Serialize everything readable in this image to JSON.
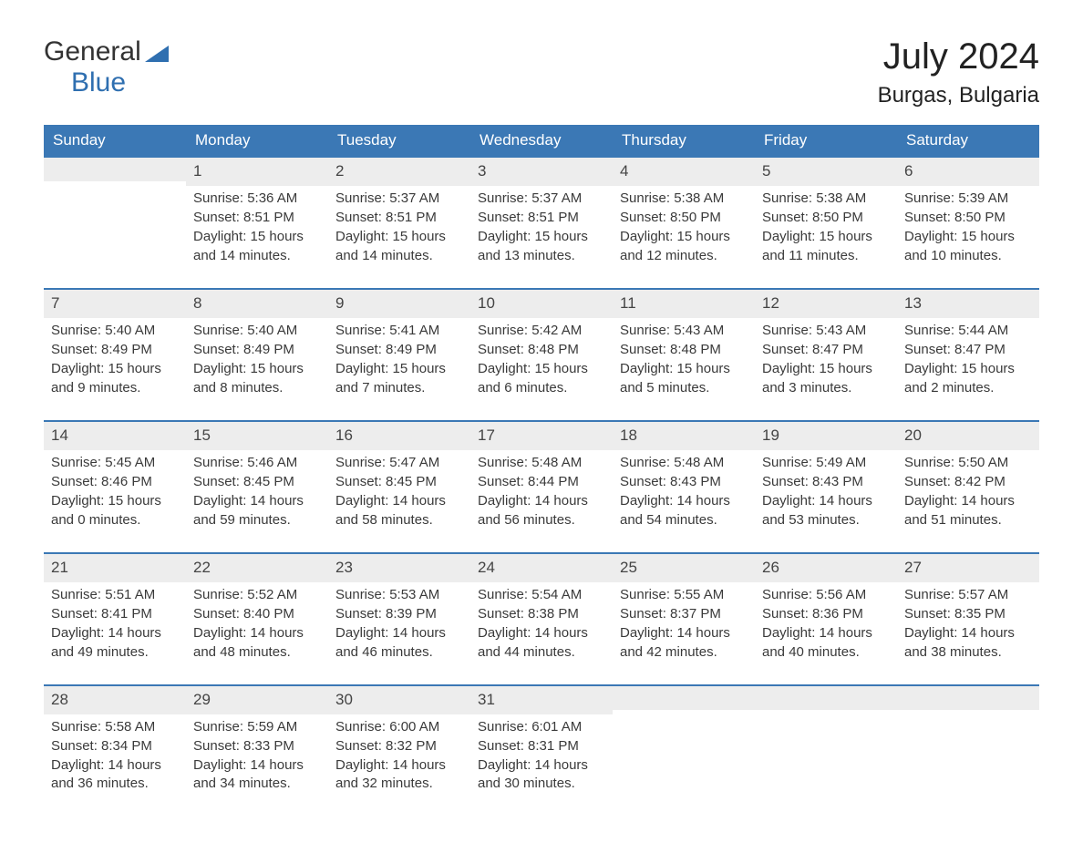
{
  "logo": {
    "word1": "General",
    "word2": "Blue"
  },
  "header": {
    "month_title": "July 2024",
    "location": "Burgas, Bulgaria"
  },
  "colors": {
    "header_bg": "#3b78b5",
    "header_text": "#ffffff",
    "daynum_bg": "#ededed",
    "border": "#3b78b5",
    "logo_blue": "#2f6fb0",
    "body_text": "#3a3a3a"
  },
  "weekdays": [
    "Sunday",
    "Monday",
    "Tuesday",
    "Wednesday",
    "Thursday",
    "Friday",
    "Saturday"
  ],
  "weeks": [
    [
      {
        "n": "",
        "sunrise": "",
        "sunset": "",
        "daylight": ""
      },
      {
        "n": "1",
        "sunrise": "Sunrise: 5:36 AM",
        "sunset": "Sunset: 8:51 PM",
        "daylight": "Daylight: 15 hours and 14 minutes."
      },
      {
        "n": "2",
        "sunrise": "Sunrise: 5:37 AM",
        "sunset": "Sunset: 8:51 PM",
        "daylight": "Daylight: 15 hours and 14 minutes."
      },
      {
        "n": "3",
        "sunrise": "Sunrise: 5:37 AM",
        "sunset": "Sunset: 8:51 PM",
        "daylight": "Daylight: 15 hours and 13 minutes."
      },
      {
        "n": "4",
        "sunrise": "Sunrise: 5:38 AM",
        "sunset": "Sunset: 8:50 PM",
        "daylight": "Daylight: 15 hours and 12 minutes."
      },
      {
        "n": "5",
        "sunrise": "Sunrise: 5:38 AM",
        "sunset": "Sunset: 8:50 PM",
        "daylight": "Daylight: 15 hours and 11 minutes."
      },
      {
        "n": "6",
        "sunrise": "Sunrise: 5:39 AM",
        "sunset": "Sunset: 8:50 PM",
        "daylight": "Daylight: 15 hours and 10 minutes."
      }
    ],
    [
      {
        "n": "7",
        "sunrise": "Sunrise: 5:40 AM",
        "sunset": "Sunset: 8:49 PM",
        "daylight": "Daylight: 15 hours and 9 minutes."
      },
      {
        "n": "8",
        "sunrise": "Sunrise: 5:40 AM",
        "sunset": "Sunset: 8:49 PM",
        "daylight": "Daylight: 15 hours and 8 minutes."
      },
      {
        "n": "9",
        "sunrise": "Sunrise: 5:41 AM",
        "sunset": "Sunset: 8:49 PM",
        "daylight": "Daylight: 15 hours and 7 minutes."
      },
      {
        "n": "10",
        "sunrise": "Sunrise: 5:42 AM",
        "sunset": "Sunset: 8:48 PM",
        "daylight": "Daylight: 15 hours and 6 minutes."
      },
      {
        "n": "11",
        "sunrise": "Sunrise: 5:43 AM",
        "sunset": "Sunset: 8:48 PM",
        "daylight": "Daylight: 15 hours and 5 minutes."
      },
      {
        "n": "12",
        "sunrise": "Sunrise: 5:43 AM",
        "sunset": "Sunset: 8:47 PM",
        "daylight": "Daylight: 15 hours and 3 minutes."
      },
      {
        "n": "13",
        "sunrise": "Sunrise: 5:44 AM",
        "sunset": "Sunset: 8:47 PM",
        "daylight": "Daylight: 15 hours and 2 minutes."
      }
    ],
    [
      {
        "n": "14",
        "sunrise": "Sunrise: 5:45 AM",
        "sunset": "Sunset: 8:46 PM",
        "daylight": "Daylight: 15 hours and 0 minutes."
      },
      {
        "n": "15",
        "sunrise": "Sunrise: 5:46 AM",
        "sunset": "Sunset: 8:45 PM",
        "daylight": "Daylight: 14 hours and 59 minutes."
      },
      {
        "n": "16",
        "sunrise": "Sunrise: 5:47 AM",
        "sunset": "Sunset: 8:45 PM",
        "daylight": "Daylight: 14 hours and 58 minutes."
      },
      {
        "n": "17",
        "sunrise": "Sunrise: 5:48 AM",
        "sunset": "Sunset: 8:44 PM",
        "daylight": "Daylight: 14 hours and 56 minutes."
      },
      {
        "n": "18",
        "sunrise": "Sunrise: 5:48 AM",
        "sunset": "Sunset: 8:43 PM",
        "daylight": "Daylight: 14 hours and 54 minutes."
      },
      {
        "n": "19",
        "sunrise": "Sunrise: 5:49 AM",
        "sunset": "Sunset: 8:43 PM",
        "daylight": "Daylight: 14 hours and 53 minutes."
      },
      {
        "n": "20",
        "sunrise": "Sunrise: 5:50 AM",
        "sunset": "Sunset: 8:42 PM",
        "daylight": "Daylight: 14 hours and 51 minutes."
      }
    ],
    [
      {
        "n": "21",
        "sunrise": "Sunrise: 5:51 AM",
        "sunset": "Sunset: 8:41 PM",
        "daylight": "Daylight: 14 hours and 49 minutes."
      },
      {
        "n": "22",
        "sunrise": "Sunrise: 5:52 AM",
        "sunset": "Sunset: 8:40 PM",
        "daylight": "Daylight: 14 hours and 48 minutes."
      },
      {
        "n": "23",
        "sunrise": "Sunrise: 5:53 AM",
        "sunset": "Sunset: 8:39 PM",
        "daylight": "Daylight: 14 hours and 46 minutes."
      },
      {
        "n": "24",
        "sunrise": "Sunrise: 5:54 AM",
        "sunset": "Sunset: 8:38 PM",
        "daylight": "Daylight: 14 hours and 44 minutes."
      },
      {
        "n": "25",
        "sunrise": "Sunrise: 5:55 AM",
        "sunset": "Sunset: 8:37 PM",
        "daylight": "Daylight: 14 hours and 42 minutes."
      },
      {
        "n": "26",
        "sunrise": "Sunrise: 5:56 AM",
        "sunset": "Sunset: 8:36 PM",
        "daylight": "Daylight: 14 hours and 40 minutes."
      },
      {
        "n": "27",
        "sunrise": "Sunrise: 5:57 AM",
        "sunset": "Sunset: 8:35 PM",
        "daylight": "Daylight: 14 hours and 38 minutes."
      }
    ],
    [
      {
        "n": "28",
        "sunrise": "Sunrise: 5:58 AM",
        "sunset": "Sunset: 8:34 PM",
        "daylight": "Daylight: 14 hours and 36 minutes."
      },
      {
        "n": "29",
        "sunrise": "Sunrise: 5:59 AM",
        "sunset": "Sunset: 8:33 PM",
        "daylight": "Daylight: 14 hours and 34 minutes."
      },
      {
        "n": "30",
        "sunrise": "Sunrise: 6:00 AM",
        "sunset": "Sunset: 8:32 PM",
        "daylight": "Daylight: 14 hours and 32 minutes."
      },
      {
        "n": "31",
        "sunrise": "Sunrise: 6:01 AM",
        "sunset": "Sunset: 8:31 PM",
        "daylight": "Daylight: 14 hours and 30 minutes."
      },
      {
        "n": "",
        "sunrise": "",
        "sunset": "",
        "daylight": ""
      },
      {
        "n": "",
        "sunrise": "",
        "sunset": "",
        "daylight": ""
      },
      {
        "n": "",
        "sunrise": "",
        "sunset": "",
        "daylight": ""
      }
    ]
  ]
}
